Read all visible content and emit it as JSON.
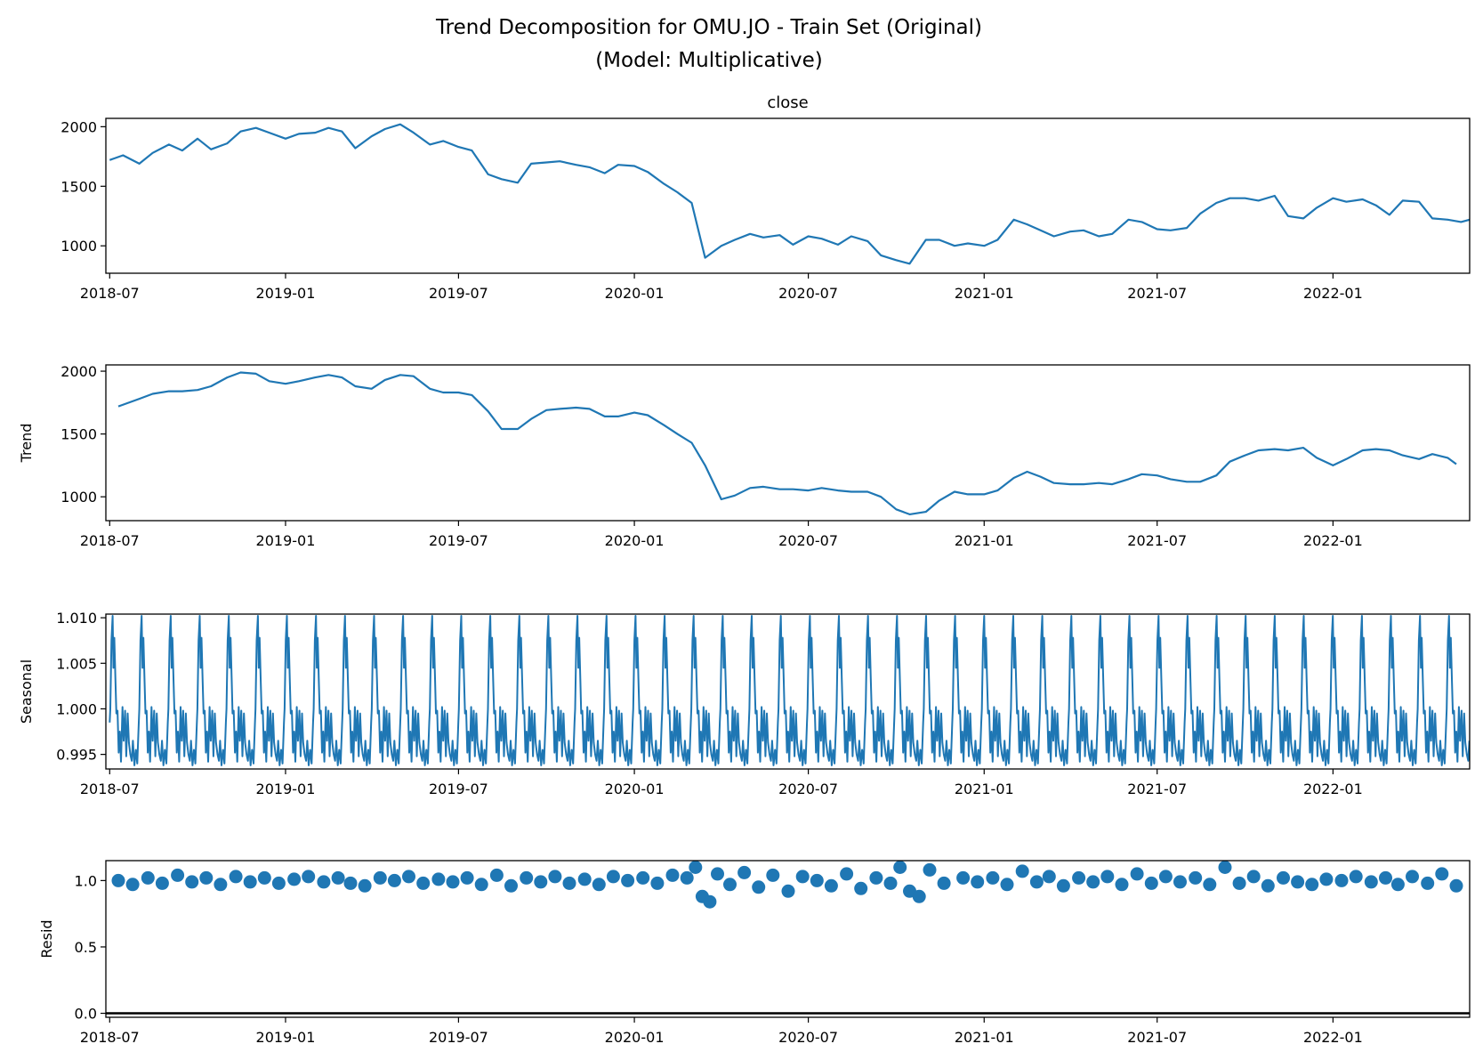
{
  "figure": {
    "title_line1": "Trend Decomposition for OMU.JO - Train Set (Original)",
    "title_line2": "(Model: Multiplicative)"
  },
  "colors": {
    "series": "#1f77b4",
    "axis": "#000000",
    "zero_line": "#000000"
  },
  "chart_data": [
    {
      "type": "line",
      "title": "close",
      "xlabel": "",
      "ylabel": "",
      "xlim": [
        "2018-06-27",
        "2022-05-24"
      ],
      "ylim": [
        770,
        2070
      ],
      "yticks": [
        1000,
        1500,
        2000
      ],
      "ytick_labels": [
        "1000",
        "1500",
        "2000"
      ],
      "xticks": [
        "2018-07",
        "2019-01",
        "2019-07",
        "2020-01",
        "2020-07",
        "2021-01",
        "2021-07",
        "2022-01"
      ],
      "grid": false,
      "series": [
        {
          "x": [
            "2018-07-01",
            "2018-07-15",
            "2018-08-01",
            "2018-08-15",
            "2018-09-01",
            "2018-09-15",
            "2018-10-01",
            "2018-10-15",
            "2018-11-01",
            "2018-11-15",
            "2018-12-01",
            "2018-12-15",
            "2019-01-01",
            "2019-01-15",
            "2019-02-01",
            "2019-02-15",
            "2019-03-01",
            "2019-03-15",
            "2019-04-01",
            "2019-04-15",
            "2019-05-01",
            "2019-05-15",
            "2019-06-01",
            "2019-06-15",
            "2019-07-01",
            "2019-07-15",
            "2019-08-01",
            "2019-08-15",
            "2019-09-01",
            "2019-09-15",
            "2019-10-01",
            "2019-10-15",
            "2019-11-01",
            "2019-11-15",
            "2019-12-01",
            "2019-12-15",
            "2020-01-01",
            "2020-01-15",
            "2020-02-01",
            "2020-02-15",
            "2020-03-01",
            "2020-03-15",
            "2020-04-01",
            "2020-04-15",
            "2020-05-01",
            "2020-05-15",
            "2020-06-01",
            "2020-06-15",
            "2020-07-01",
            "2020-07-15",
            "2020-08-01",
            "2020-08-15",
            "2020-09-01",
            "2020-09-15",
            "2020-10-01",
            "2020-10-15",
            "2020-11-01",
            "2020-11-15",
            "2020-12-01",
            "2020-12-15",
            "2021-01-01",
            "2021-01-15",
            "2021-02-01",
            "2021-02-15",
            "2021-03-01",
            "2021-03-15",
            "2021-04-01",
            "2021-04-15",
            "2021-05-01",
            "2021-05-15",
            "2021-06-01",
            "2021-06-15",
            "2021-07-01",
            "2021-07-15",
            "2021-08-01",
            "2021-08-15",
            "2021-09-01",
            "2021-09-15",
            "2021-10-01",
            "2021-10-15",
            "2021-11-01",
            "2021-11-15",
            "2021-12-01",
            "2021-12-15",
            "2022-01-01",
            "2022-01-15",
            "2022-02-01",
            "2022-02-15",
            "2022-03-01",
            "2022-03-15",
            "2022-04-01",
            "2022-04-15",
            "2022-05-01",
            "2022-05-15",
            "2022-05-24"
          ],
          "values": [
            1720,
            1760,
            1690,
            1780,
            1850,
            1800,
            1900,
            1810,
            1860,
            1960,
            1990,
            1950,
            1900,
            1940,
            1950,
            1990,
            1960,
            1820,
            1920,
            1980,
            2020,
            1950,
            1850,
            1880,
            1830,
            1800,
            1600,
            1560,
            1530,
            1690,
            1700,
            1710,
            1680,
            1660,
            1610,
            1680,
            1670,
            1620,
            1520,
            1450,
            1360,
            900,
            1000,
            1050,
            1100,
            1070,
            1090,
            1010,
            1080,
            1060,
            1010,
            1080,
            1040,
            920,
            880,
            850,
            1050,
            1050,
            1000,
            1020,
            1000,
            1050,
            1220,
            1180,
            1130,
            1080,
            1120,
            1130,
            1080,
            1100,
            1220,
            1200,
            1140,
            1130,
            1150,
            1270,
            1360,
            1400,
            1400,
            1380,
            1420,
            1250,
            1230,
            1320,
            1400,
            1370,
            1390,
            1340,
            1260,
            1380,
            1370,
            1230,
            1220,
            1200,
            1220
          ]
        }
      ]
    },
    {
      "type": "line",
      "title": "",
      "xlabel": "",
      "ylabel": "Trend",
      "xlim": [
        "2018-06-27",
        "2022-05-24"
      ],
      "ylim": [
        810,
        2050
      ],
      "yticks": [
        1000,
        1500,
        2000
      ],
      "ytick_labels": [
        "1000",
        "1500",
        "2000"
      ],
      "xticks": [
        "2018-07",
        "2019-01",
        "2019-07",
        "2020-01",
        "2020-07",
        "2021-01",
        "2021-07",
        "2022-01"
      ],
      "grid": false,
      "series": [
        {
          "x": [
            "2018-07-10",
            "2018-08-01",
            "2018-08-15",
            "2018-09-01",
            "2018-09-15",
            "2018-10-01",
            "2018-10-15",
            "2018-11-01",
            "2018-11-15",
            "2018-12-01",
            "2018-12-15",
            "2019-01-01",
            "2019-01-15",
            "2019-02-01",
            "2019-02-15",
            "2019-03-01",
            "2019-03-15",
            "2019-04-01",
            "2019-04-15",
            "2019-05-01",
            "2019-05-15",
            "2019-06-01",
            "2019-06-15",
            "2019-07-01",
            "2019-07-15",
            "2019-08-01",
            "2019-08-15",
            "2019-09-01",
            "2019-09-15",
            "2019-10-01",
            "2019-10-15",
            "2019-11-01",
            "2019-11-15",
            "2019-12-01",
            "2019-12-15",
            "2020-01-01",
            "2020-01-15",
            "2020-02-01",
            "2020-02-15",
            "2020-03-01",
            "2020-03-15",
            "2020-04-01",
            "2020-04-15",
            "2020-05-01",
            "2020-05-15",
            "2020-06-01",
            "2020-06-15",
            "2020-07-01",
            "2020-07-15",
            "2020-08-01",
            "2020-08-15",
            "2020-09-01",
            "2020-09-15",
            "2020-10-01",
            "2020-10-15",
            "2020-11-01",
            "2020-11-15",
            "2020-12-01",
            "2020-12-15",
            "2021-01-01",
            "2021-01-15",
            "2021-02-01",
            "2021-02-15",
            "2021-03-01",
            "2021-03-15",
            "2021-04-01",
            "2021-04-15",
            "2021-05-01",
            "2021-05-15",
            "2021-06-01",
            "2021-06-15",
            "2021-07-01",
            "2021-07-15",
            "2021-08-01",
            "2021-08-15",
            "2021-09-01",
            "2021-09-15",
            "2021-10-01",
            "2021-10-15",
            "2021-11-01",
            "2021-11-15",
            "2021-12-01",
            "2021-12-15",
            "2022-01-01",
            "2022-01-15",
            "2022-02-01",
            "2022-02-15",
            "2022-03-01",
            "2022-03-15",
            "2022-04-01",
            "2022-04-15",
            "2022-05-01",
            "2022-05-10"
          ],
          "values": [
            1720,
            1780,
            1820,
            1840,
            1840,
            1850,
            1880,
            1950,
            1990,
            1980,
            1920,
            1900,
            1920,
            1950,
            1970,
            1950,
            1880,
            1860,
            1930,
            1970,
            1960,
            1860,
            1830,
            1830,
            1810,
            1680,
            1540,
            1540,
            1620,
            1690,
            1700,
            1710,
            1700,
            1640,
            1640,
            1670,
            1650,
            1570,
            1500,
            1430,
            1250,
            980,
            1010,
            1070,
            1080,
            1060,
            1060,
            1050,
            1070,
            1050,
            1040,
            1040,
            1000,
            900,
            860,
            880,
            970,
            1040,
            1020,
            1020,
            1050,
            1150,
            1200,
            1160,
            1110,
            1100,
            1100,
            1110,
            1100,
            1140,
            1180,
            1170,
            1140,
            1120,
            1120,
            1170,
            1280,
            1330,
            1370,
            1380,
            1370,
            1390,
            1310,
            1250,
            1300,
            1370,
            1380,
            1370,
            1330,
            1300,
            1340,
            1310,
            1260
          ]
        }
      ]
    },
    {
      "type": "line",
      "title": "",
      "xlabel": "",
      "ylabel": "Seasonal",
      "xlim": [
        "2018-06-27",
        "2022-05-24"
      ],
      "ylim": [
        0.9934,
        1.0104
      ],
      "yticks": [
        0.995,
        1.0,
        1.005,
        1.01
      ],
      "ytick_labels": [
        "0.995",
        "1.000",
        "1.005",
        "1.010"
      ],
      "xticks": [
        "2018-07",
        "2019-01",
        "2019-07",
        "2020-01",
        "2020-07",
        "2021-01",
        "2021-07",
        "2022-01"
      ],
      "grid": false,
      "period_days": 30.4,
      "series": [
        {
          "cycle_phase": [
            0.0,
            0.02,
            0.06,
            0.1,
            0.13,
            0.16,
            0.2,
            0.23,
            0.27,
            0.31,
            0.35,
            0.39,
            0.44,
            0.48,
            0.53,
            0.57,
            0.62,
            0.66,
            0.71,
            0.76,
            0.8,
            0.85,
            0.9,
            0.95,
            1.0
          ],
          "cycle_values": [
            0.9985,
            1.0,
            1.0075,
            1.0102,
            1.0045,
            1.0078,
            1.003,
            0.9995,
            0.9998,
            0.9952,
            0.9975,
            0.9942,
            1.0002,
            0.9965,
            0.9998,
            0.9948,
            0.9995,
            0.9963,
            0.995,
            0.9943,
            0.9965,
            0.9938,
            0.9955,
            0.994,
            0.9985
          ]
        }
      ]
    },
    {
      "type": "scatter",
      "title": "",
      "xlabel": "",
      "ylabel": "Resid",
      "xlim": [
        "2018-06-27",
        "2022-05-24"
      ],
      "ylim": [
        -0.03,
        1.15
      ],
      "yticks": [
        0.0,
        0.5,
        1.0
      ],
      "ytick_labels": [
        "0.0",
        "0.5",
        "1.0"
      ],
      "xticks": [
        "2018-07",
        "2019-01",
        "2019-07",
        "2020-01",
        "2020-07",
        "2021-01",
        "2021-07",
        "2022-01"
      ],
      "grid": false,
      "zero_line": 0.0,
      "series": [
        {
          "x": [
            "2018-07-10",
            "2018-07-25",
            "2018-08-10",
            "2018-08-25",
            "2018-09-10",
            "2018-09-25",
            "2018-10-10",
            "2018-10-25",
            "2018-11-10",
            "2018-11-25",
            "2018-12-10",
            "2018-12-25",
            "2019-01-10",
            "2019-01-25",
            "2019-02-10",
            "2019-02-25",
            "2019-03-10",
            "2019-03-25",
            "2019-04-10",
            "2019-04-25",
            "2019-05-10",
            "2019-05-25",
            "2019-06-10",
            "2019-06-25",
            "2019-07-10",
            "2019-07-25",
            "2019-08-10",
            "2019-08-25",
            "2019-09-10",
            "2019-09-25",
            "2019-10-10",
            "2019-10-25",
            "2019-11-10",
            "2019-11-25",
            "2019-12-10",
            "2019-12-25",
            "2020-01-10",
            "2020-01-25",
            "2020-02-10",
            "2020-02-25",
            "2020-03-05",
            "2020-03-12",
            "2020-03-20",
            "2020-03-28",
            "2020-04-10",
            "2020-04-25",
            "2020-05-10",
            "2020-05-25",
            "2020-06-10",
            "2020-06-25",
            "2020-07-10",
            "2020-07-25",
            "2020-08-10",
            "2020-08-25",
            "2020-09-10",
            "2020-09-25",
            "2020-10-05",
            "2020-10-15",
            "2020-10-25",
            "2020-11-05",
            "2020-11-20",
            "2020-12-10",
            "2020-12-25",
            "2021-01-10",
            "2021-01-25",
            "2021-02-10",
            "2021-02-25",
            "2021-03-10",
            "2021-03-25",
            "2021-04-10",
            "2021-04-25",
            "2021-05-10",
            "2021-05-25",
            "2021-06-10",
            "2021-06-25",
            "2021-07-10",
            "2021-07-25",
            "2021-08-10",
            "2021-08-25",
            "2021-09-10",
            "2021-09-25",
            "2021-10-10",
            "2021-10-25",
            "2021-11-10",
            "2021-11-25",
            "2021-12-10",
            "2021-12-25",
            "2022-01-10",
            "2022-01-25",
            "2022-02-10",
            "2022-02-25",
            "2022-03-10",
            "2022-03-25",
            "2022-04-10",
            "2022-04-25",
            "2022-05-10"
          ],
          "values": [
            1.0,
            0.97,
            1.02,
            0.98,
            1.04,
            0.99,
            1.02,
            0.97,
            1.03,
            0.99,
            1.02,
            0.98,
            1.01,
            1.03,
            0.99,
            1.02,
            0.98,
            0.96,
            1.02,
            1.0,
            1.03,
            0.98,
            1.01,
            0.99,
            1.02,
            0.97,
            1.04,
            0.96,
            1.02,
            0.99,
            1.03,
            0.98,
            1.01,
            0.97,
            1.03,
            1.0,
            1.02,
            0.98,
            1.04,
            1.02,
            1.1,
            0.88,
            0.84,
            1.05,
            0.97,
            1.06,
            0.95,
            1.04,
            0.92,
            1.03,
            1.0,
            0.96,
            1.05,
            0.94,
            1.02,
            0.98,
            1.1,
            0.92,
            0.88,
            1.08,
            0.98,
            1.02,
            0.99,
            1.02,
            0.97,
            1.07,
            0.99,
            1.03,
            0.96,
            1.02,
            0.99,
            1.03,
            0.97,
            1.05,
            0.98,
            1.03,
            0.99,
            1.02,
            0.97,
            1.1,
            0.98,
            1.03,
            0.96,
            1.02,
            0.99,
            0.97,
            1.01,
            1.0,
            1.03,
            0.99,
            1.02,
            0.97,
            1.03,
            0.98,
            1.05,
            0.96
          ]
        }
      ]
    }
  ]
}
